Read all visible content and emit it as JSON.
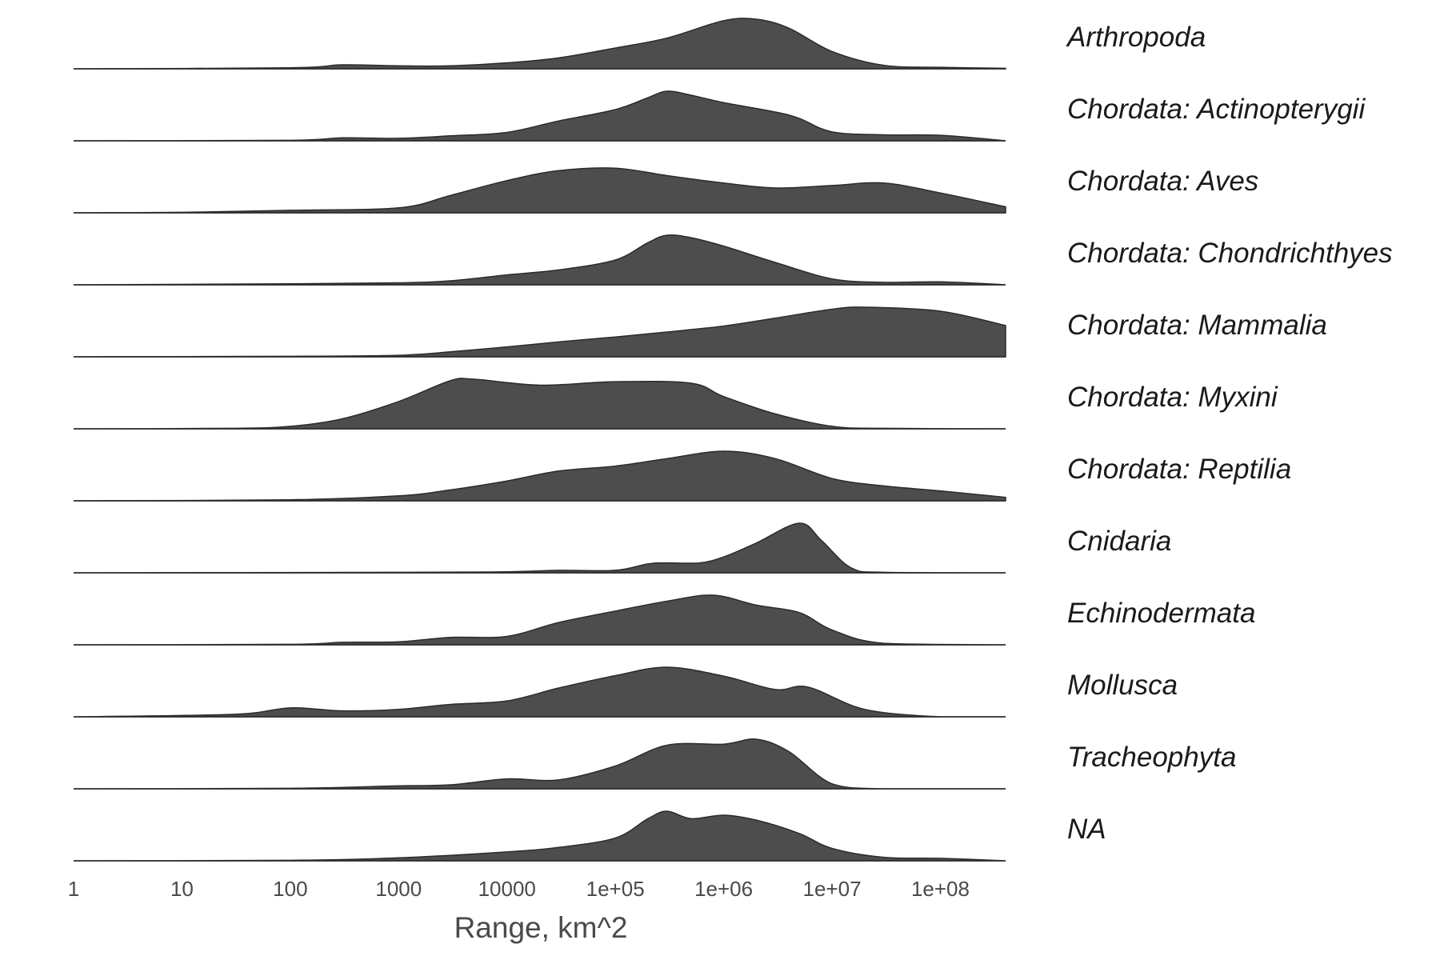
{
  "chart_data": {
    "type": "ridgeline",
    "x_scale": "log10",
    "xlim": [
      1,
      400000000
    ],
    "xlabel": "Range, km^2",
    "x_ticks": [
      {
        "value": 1,
        "label": "1"
      },
      {
        "value": 10,
        "label": "10"
      },
      {
        "value": 100,
        "label": "100"
      },
      {
        "value": 1000,
        "label": "1000"
      },
      {
        "value": 10000,
        "label": "10000"
      },
      {
        "value": 100000,
        "label": "1e+05"
      },
      {
        "value": 1000000,
        "label": "1e+06"
      },
      {
        "value": 10000000,
        "label": "1e+07"
      },
      {
        "value": 100000000,
        "label": "1e+08"
      }
    ],
    "fill_color": "#4d4d4d",
    "grid": false,
    "series": [
      {
        "name": "Arthropoda",
        "points": [
          [
            1,
            0
          ],
          [
            100,
            0.02
          ],
          [
            300,
            0.08
          ],
          [
            1000,
            0.06
          ],
          [
            3000,
            0.06
          ],
          [
            10000,
            0.12
          ],
          [
            30000,
            0.22
          ],
          [
            100000,
            0.42
          ],
          [
            300000,
            0.62
          ],
          [
            1000000,
            0.97
          ],
          [
            2000000,
            1
          ],
          [
            4000000,
            0.82
          ],
          [
            10000000,
            0.35
          ],
          [
            30000000,
            0.07
          ],
          [
            100000000,
            0.03
          ],
          [
            400000000,
            0.01
          ]
        ]
      },
      {
        "name": "Chordata: Actinopterygii",
        "points": [
          [
            1,
            0
          ],
          [
            100,
            0.01
          ],
          [
            300,
            0.06
          ],
          [
            1000,
            0.05
          ],
          [
            3000,
            0.1
          ],
          [
            10000,
            0.17
          ],
          [
            30000,
            0.4
          ],
          [
            100000,
            0.63
          ],
          [
            200000,
            0.87
          ],
          [
            300000,
            1
          ],
          [
            500000,
            0.92
          ],
          [
            1000000,
            0.77
          ],
          [
            3000000,
            0.58
          ],
          [
            5000000,
            0.45
          ],
          [
            10000000,
            0.18
          ],
          [
            30000000,
            0.12
          ],
          [
            100000000,
            0.11
          ],
          [
            400000000,
            0
          ]
        ]
      },
      {
        "name": "Chordata: Aves",
        "points": [
          [
            1,
            0
          ],
          [
            10,
            0.01
          ],
          [
            100,
            0.05
          ],
          [
            1000,
            0.1
          ],
          [
            3000,
            0.35
          ],
          [
            10000,
            0.65
          ],
          [
            30000,
            0.85
          ],
          [
            100000,
            0.9
          ],
          [
            300000,
            0.75
          ],
          [
            1000000,
            0.6
          ],
          [
            3000000,
            0.5
          ],
          [
            10000000,
            0.55
          ],
          [
            30000000,
            0.6
          ],
          [
            100000000,
            0.4
          ],
          [
            400000000,
            0.12
          ]
        ]
      },
      {
        "name": "Chordata: Chondrichthyes",
        "points": [
          [
            1,
            0
          ],
          [
            100,
            0.02
          ],
          [
            1000,
            0.04
          ],
          [
            3000,
            0.08
          ],
          [
            10000,
            0.2
          ],
          [
            30000,
            0.3
          ],
          [
            100000,
            0.5
          ],
          [
            200000,
            0.85
          ],
          [
            300000,
            1
          ],
          [
            500000,
            0.95
          ],
          [
            1000000,
            0.78
          ],
          [
            3000000,
            0.45
          ],
          [
            10000000,
            0.12
          ],
          [
            30000000,
            0.05
          ],
          [
            100000000,
            0.06
          ],
          [
            400000000,
            0
          ]
        ]
      },
      {
        "name": "Chordata: Mammalia",
        "points": [
          [
            1,
            0
          ],
          [
            100,
            0.01
          ],
          [
            1000,
            0.03
          ],
          [
            3000,
            0.1
          ],
          [
            10000,
            0.2
          ],
          [
            30000,
            0.3
          ],
          [
            100000,
            0.4
          ],
          [
            300000,
            0.5
          ],
          [
            1000000,
            0.62
          ],
          [
            3000000,
            0.78
          ],
          [
            10000000,
            0.96
          ],
          [
            20000000,
            1
          ],
          [
            100000000,
            0.92
          ],
          [
            400000000,
            0.63
          ]
        ]
      },
      {
        "name": "Chordata: Myxini",
        "points": [
          [
            1,
            0
          ],
          [
            30,
            0.01
          ],
          [
            100,
            0.05
          ],
          [
            300,
            0.2
          ],
          [
            1000,
            0.55
          ],
          [
            3000,
            0.97
          ],
          [
            5000,
            1
          ],
          [
            20000,
            0.88
          ],
          [
            100000,
            0.95
          ],
          [
            500000,
            0.92
          ],
          [
            1000000,
            0.65
          ],
          [
            3000000,
            0.3
          ],
          [
            10000000,
            0.05
          ],
          [
            30000000,
            0.01
          ],
          [
            400000000,
            0
          ]
        ]
      },
      {
        "name": "Chordata: Reptilia",
        "points": [
          [
            1,
            0
          ],
          [
            100,
            0.02
          ],
          [
            1000,
            0.1
          ],
          [
            3000,
            0.22
          ],
          [
            10000,
            0.4
          ],
          [
            30000,
            0.6
          ],
          [
            100000,
            0.7
          ],
          [
            300000,
            0.85
          ],
          [
            1000000,
            1
          ],
          [
            3000000,
            0.85
          ],
          [
            10000000,
            0.45
          ],
          [
            30000000,
            0.3
          ],
          [
            100000000,
            0.2
          ],
          [
            400000000,
            0.07
          ]
        ]
      },
      {
        "name": "Cnidaria",
        "points": [
          [
            1,
            0
          ],
          [
            1000,
            0.01
          ],
          [
            10000,
            0.02
          ],
          [
            30000,
            0.05
          ],
          [
            100000,
            0.05
          ],
          [
            200000,
            0.18
          ],
          [
            300000,
            0.2
          ],
          [
            600000,
            0.2
          ],
          [
            1000000,
            0.32
          ],
          [
            2000000,
            0.6
          ],
          [
            5000000,
            1
          ],
          [
            8000000,
            0.65
          ],
          [
            15000000,
            0.1
          ],
          [
            30000000,
            0.01
          ],
          [
            400000000,
            0
          ]
        ]
      },
      {
        "name": "Echinodermata",
        "points": [
          [
            1,
            0
          ],
          [
            100,
            0.01
          ],
          [
            300,
            0.05
          ],
          [
            1000,
            0.06
          ],
          [
            3000,
            0.15
          ],
          [
            10000,
            0.17
          ],
          [
            30000,
            0.45
          ],
          [
            100000,
            0.68
          ],
          [
            300000,
            0.88
          ],
          [
            800000,
            1
          ],
          [
            2000000,
            0.8
          ],
          [
            5000000,
            0.65
          ],
          [
            10000000,
            0.3
          ],
          [
            30000000,
            0.03
          ],
          [
            400000000,
            0
          ]
        ]
      },
      {
        "name": "Mollusca",
        "points": [
          [
            1,
            0
          ],
          [
            30,
            0.05
          ],
          [
            100,
            0.18
          ],
          [
            300,
            0.12
          ],
          [
            1000,
            0.15
          ],
          [
            3000,
            0.25
          ],
          [
            10000,
            0.32
          ],
          [
            30000,
            0.58
          ],
          [
            100000,
            0.83
          ],
          [
            300000,
            1
          ],
          [
            1000000,
            0.82
          ],
          [
            3000000,
            0.55
          ],
          [
            6000000,
            0.6
          ],
          [
            20000000,
            0.15
          ],
          [
            100000000,
            0
          ],
          [
            400000000,
            0
          ]
        ]
      },
      {
        "name": "Tracheophyta",
        "points": [
          [
            1,
            0
          ],
          [
            100,
            0.01
          ],
          [
            1000,
            0.06
          ],
          [
            3000,
            0.08
          ],
          [
            10000,
            0.2
          ],
          [
            30000,
            0.18
          ],
          [
            100000,
            0.46
          ],
          [
            300000,
            0.88
          ],
          [
            1000000,
            0.9
          ],
          [
            2000000,
            1
          ],
          [
            4000000,
            0.75
          ],
          [
            10000000,
            0.1
          ],
          [
            30000000,
            0
          ],
          [
            400000000,
            0
          ]
        ]
      },
      {
        "name": "NA",
        "points": [
          [
            1,
            0
          ],
          [
            100,
            0.01
          ],
          [
            1000,
            0.06
          ],
          [
            10000,
            0.18
          ],
          [
            30000,
            0.27
          ],
          [
            100000,
            0.46
          ],
          [
            200000,
            0.85
          ],
          [
            300000,
            1
          ],
          [
            500000,
            0.85
          ],
          [
            1000000,
            0.92
          ],
          [
            2000000,
            0.82
          ],
          [
            5000000,
            0.55
          ],
          [
            10000000,
            0.25
          ],
          [
            30000000,
            0.07
          ],
          [
            100000000,
            0.05
          ],
          [
            400000000,
            0
          ]
        ]
      }
    ]
  }
}
